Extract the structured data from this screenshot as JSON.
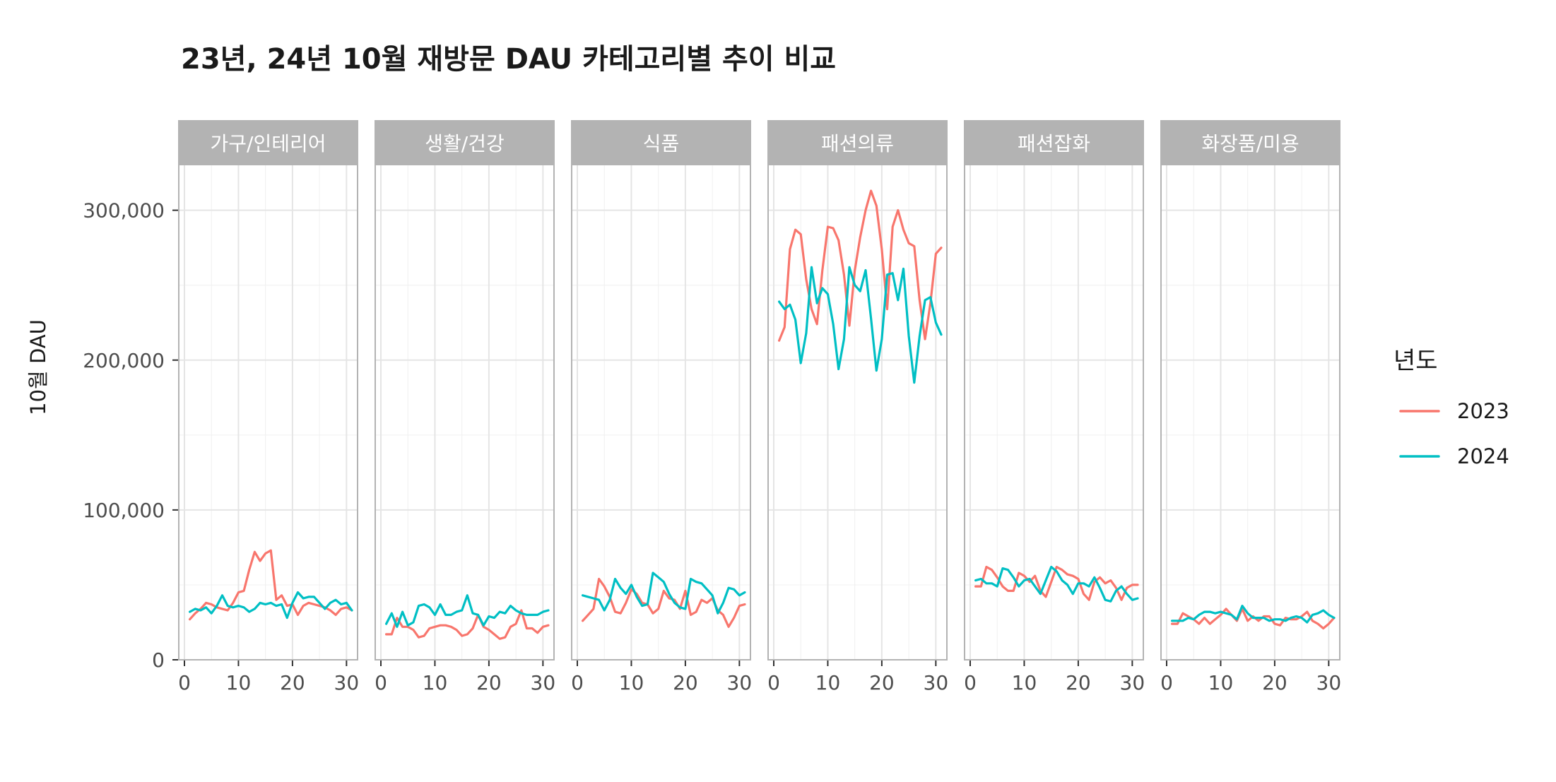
{
  "chart_data": {
    "type": "line",
    "title": "23년, 24년 10월 재방문 DAU 카테고리별 추이 비교",
    "ylabel": "10월 DAU",
    "xlabel": "",
    "xlim": [
      0,
      31
    ],
    "ylim": [
      0,
      330000
    ],
    "x_ticks": [
      0,
      10,
      20,
      30
    ],
    "y_ticks": [
      0,
      100000,
      200000,
      300000
    ],
    "y_tick_labels": [
      "0",
      "100,000",
      "200,000",
      "300,000"
    ],
    "grid": true,
    "legend": {
      "title": "년도",
      "position": "right",
      "entries": [
        {
          "label": "2023",
          "color": "#F8766D"
        },
        {
          "label": "2024",
          "color": "#00BFC4"
        }
      ]
    },
    "x": [
      1,
      2,
      3,
      4,
      5,
      6,
      7,
      8,
      9,
      10,
      11,
      12,
      13,
      14,
      15,
      16,
      17,
      18,
      19,
      20,
      21,
      22,
      23,
      24,
      25,
      26,
      27,
      28,
      29,
      30,
      31
    ],
    "panels": [
      {
        "name": "가구/인테리어",
        "series": [
          {
            "name": "2023",
            "values": [
              27000,
              31000,
              34000,
              38000,
              37000,
              35000,
              34000,
              33000,
              38000,
              45000,
              46000,
              60000,
              72000,
              66000,
              71000,
              73000,
              40000,
              43000,
              36000,
              37000,
              30000,
              36000,
              38000,
              37000,
              36000,
              35000,
              33000,
              30000,
              34000,
              35000,
              33000
            ]
          },
          {
            "name": "2024",
            "values": [
              32000,
              34000,
              33000,
              35000,
              31000,
              36000,
              43000,
              36000,
              35000,
              36000,
              35000,
              32000,
              34000,
              38000,
              37000,
              38000,
              36000,
              37000,
              28000,
              38000,
              45000,
              41000,
              42000,
              42000,
              38000,
              34000,
              38000,
              40000,
              37000,
              38000,
              33000
            ]
          }
        ]
      },
      {
        "name": "생활/건강",
        "series": [
          {
            "name": "2023",
            "values": [
              17000,
              17000,
              28000,
              22000,
              22000,
              20000,
              15000,
              16000,
              21000,
              22000,
              23000,
              23000,
              22000,
              20000,
              16000,
              17000,
              21000,
              30000,
              22000,
              20000,
              17000,
              14000,
              15000,
              22000,
              24000,
              33000,
              21000,
              21000,
              18000,
              22000,
              23000
            ]
          },
          {
            "name": "2024",
            "values": [
              24000,
              31000,
              22000,
              32000,
              23000,
              25000,
              36000,
              37000,
              35000,
              30000,
              37000,
              30000,
              30000,
              32000,
              33000,
              43000,
              31000,
              30000,
              23000,
              29000,
              28000,
              32000,
              31000,
              36000,
              33000,
              31000,
              30000,
              30000,
              30000,
              32000,
              33000
            ]
          }
        ]
      },
      {
        "name": "식품",
        "series": [
          {
            "name": "2023",
            "values": [
              26000,
              30000,
              34000,
              54000,
              49000,
              42000,
              32000,
              31000,
              38000,
              47000,
              44000,
              38000,
              37000,
              31000,
              34000,
              46000,
              41000,
              40000,
              34000,
              46000,
              30000,
              32000,
              40000,
              38000,
              41000,
              33000,
              30000,
              22000,
              28000,
              36000,
              37000
            ]
          },
          {
            "name": "2024",
            "values": [
              43000,
              42000,
              41000,
              40000,
              33000,
              40000,
              54000,
              48000,
              44000,
              50000,
              42000,
              36000,
              37000,
              58000,
              55000,
              52000,
              44000,
              38000,
              35000,
              34000,
              54000,
              52000,
              51000,
              47000,
              43000,
              31000,
              38000,
              48000,
              47000,
              43000,
              45000
            ]
          }
        ]
      },
      {
        "name": "패션의류",
        "series": [
          {
            "name": "2023",
            "values": [
              213000,
              222000,
              274000,
              287000,
              284000,
              254000,
              234000,
              224000,
              260000,
              289000,
              288000,
              280000,
              257000,
              223000,
              260000,
              282000,
              300000,
              313000,
              303000,
              274000,
              234000,
              289000,
              300000,
              287000,
              278000,
              276000,
              240000,
              214000,
              238000,
              271000,
              275000
            ]
          },
          {
            "name": "2024",
            "values": [
              239000,
              234000,
              237000,
              227000,
              198000,
              218000,
              262000,
              238000,
              248000,
              244000,
              224000,
              194000,
              214000,
              262000,
              250000,
              246000,
              260000,
              228000,
              193000,
              214000,
              257000,
              258000,
              240000,
              261000,
              216000,
              185000,
              216000,
              240000,
              242000,
              225000,
              217000
            ]
          }
        ]
      },
      {
        "name": "패션잡화",
        "series": [
          {
            "name": "2023",
            "values": [
              49000,
              49000,
              62000,
              60000,
              55000,
              49000,
              46000,
              46000,
              58000,
              56000,
              52000,
              56000,
              46000,
              42000,
              52000,
              62000,
              60000,
              57000,
              56000,
              54000,
              44000,
              40000,
              52000,
              55000,
              51000,
              53000,
              48000,
              40000,
              48000,
              50000,
              50000
            ]
          },
          {
            "name": "2024",
            "values": [
              53000,
              54000,
              51000,
              51000,
              49000,
              61000,
              60000,
              55000,
              49000,
              53000,
              54000,
              49000,
              44000,
              53000,
              62000,
              59000,
              53000,
              50000,
              44000,
              51000,
              51000,
              49000,
              55000,
              48000,
              40000,
              39000,
              46000,
              49000,
              44000,
              40000,
              41000
            ]
          }
        ]
      },
      {
        "name": "화장품/미용",
        "series": [
          {
            "name": "2023",
            "values": [
              24000,
              24000,
              31000,
              29000,
              27000,
              24000,
              28000,
              24000,
              27000,
              30000,
              34000,
              30000,
              26000,
              34000,
              26000,
              29000,
              26000,
              29000,
              29000,
              24000,
              23000,
              28000,
              27000,
              27000,
              29000,
              32000,
              26000,
              24000,
              21000,
              24000,
              28000
            ]
          },
          {
            "name": "2024",
            "values": [
              26000,
              26000,
              26000,
              28000,
              27000,
              30000,
              32000,
              32000,
              31000,
              32000,
              31000,
              30000,
              27000,
              36000,
              31000,
              28000,
              28000,
              28000,
              26000,
              27000,
              27000,
              26000,
              28000,
              29000,
              28000,
              25000,
              30000,
              31000,
              33000,
              30000,
              28000
            ]
          }
        ]
      }
    ]
  }
}
